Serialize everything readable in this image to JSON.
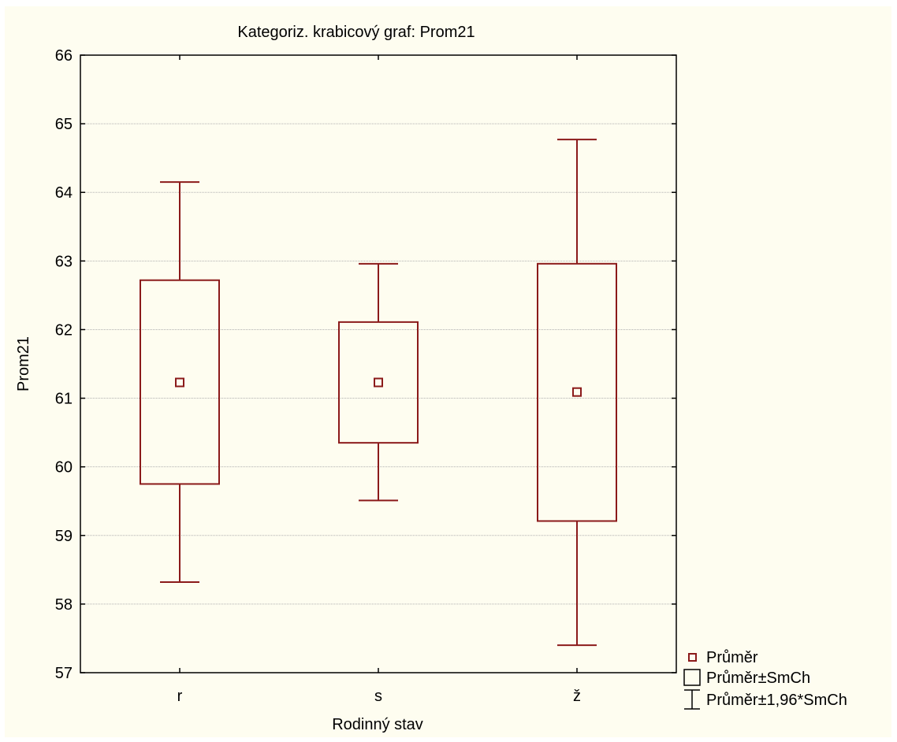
{
  "chart_data": {
    "type": "box",
    "title": "Kategoriz. krabicový graf:   Prom21",
    "xlabel": "Rodinný stav",
    "ylabel": "Prom21",
    "categories": [
      "r",
      "s",
      "ž"
    ],
    "ylim": [
      57,
      66
    ],
    "yticks": [
      57,
      58,
      59,
      60,
      61,
      62,
      63,
      64,
      65,
      66
    ],
    "grid": true,
    "legend_position": "bottom-right",
    "series_color": "#8b1a1a",
    "groups": [
      {
        "category": "r",
        "mean": 61.23,
        "box_low": 59.75,
        "box_high": 62.72,
        "whisker_low": 58.32,
        "whisker_high": 64.15
      },
      {
        "category": "s",
        "mean": 61.23,
        "box_low": 60.35,
        "box_high": 62.11,
        "whisker_low": 59.51,
        "whisker_high": 62.96
      },
      {
        "category": "ž",
        "mean": 61.09,
        "box_low": 59.21,
        "box_high": 62.96,
        "whisker_low": 57.4,
        "whisker_high": 64.77
      }
    ],
    "legend": [
      {
        "symbol": "square",
        "label": "Průměr"
      },
      {
        "symbol": "box",
        "label": "Průměr±SmCh"
      },
      {
        "symbol": "whisker",
        "label": "Průměr±1,96*SmCh"
      }
    ]
  }
}
